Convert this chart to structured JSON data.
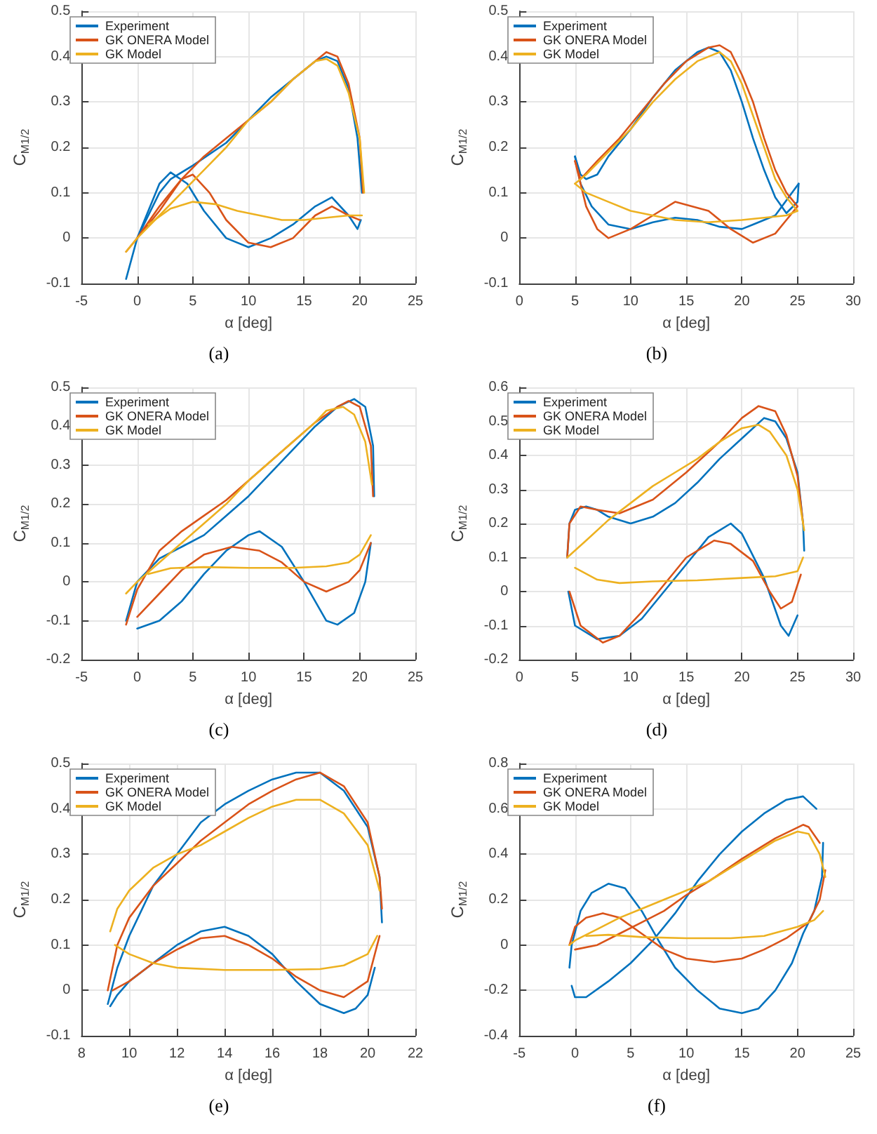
{
  "chart_data": [
    {
      "type": "line",
      "xlabel": "α [deg]",
      "ylabel": "C$_{M1/2}$",
      "annotations": [
        "(a)"
      ],
      "xlim": [
        -5,
        25
      ],
      "xticks": [
        -5,
        0,
        5,
        10,
        15,
        20,
        25
      ],
      "ylim": [
        -0.1,
        0.5
      ],
      "yticks": [
        -0.1,
        0,
        0.1,
        0.2,
        0.3,
        0.4,
        0.5
      ],
      "grid": true,
      "legend": "top left",
      "series": [
        {
          "name": "Experiment",
          "color": "#0072bd",
          "x": [
            -1,
            0,
            1,
            2,
            3,
            5,
            8,
            10,
            12,
            14,
            16,
            17,
            18,
            19,
            19.8,
            20.2
          ],
          "values": [
            -0.09,
            0,
            0.05,
            0.1,
            0.13,
            0.16,
            0.21,
            0.26,
            0.31,
            0.35,
            0.39,
            0.4,
            0.39,
            0.33,
            0.22,
            0.1
          ]
        },
        {
          "color": "#0072bd",
          "x": [
            0,
            1,
            2,
            3,
            4.5,
            6,
            8,
            10,
            12,
            14,
            16,
            17.5,
            19,
            19.8,
            20.1
          ],
          "values": [
            0,
            0.06,
            0.12,
            0.145,
            0.12,
            0.06,
            0,
            -0.02,
            0,
            0.03,
            0.07,
            0.09,
            0.05,
            0.02,
            0.04
          ]
        },
        {
          "name": "GK ONERA Model",
          "color": "#d95319",
          "x": [
            -1,
            0,
            2,
            4,
            6,
            8,
            10,
            12,
            14,
            16,
            17,
            18,
            19,
            20,
            20.3
          ],
          "values": [
            -0.03,
            0,
            0.07,
            0.13,
            0.18,
            0.22,
            0.26,
            0.3,
            0.35,
            0.39,
            0.41,
            0.4,
            0.34,
            0.22,
            0.1
          ]
        },
        {
          "color": "#d95319",
          "x": [
            0,
            2,
            4,
            5,
            6.5,
            8,
            10,
            12,
            14,
            16,
            17.5,
            19,
            20
          ],
          "values": [
            0,
            0.06,
            0.13,
            0.14,
            0.1,
            0.04,
            -0.01,
            -0.02,
            0,
            0.05,
            0.07,
            0.05,
            0.04
          ]
        },
        {
          "name": "GK Model",
          "color": "#edb120",
          "x": [
            -1,
            0,
            2,
            4,
            6,
            8,
            10,
            12,
            14,
            16,
            17,
            18,
            19,
            20,
            20.4
          ],
          "values": [
            -0.03,
            0,
            0.05,
            0.1,
            0.15,
            0.2,
            0.26,
            0.3,
            0.35,
            0.39,
            0.395,
            0.38,
            0.32,
            0.22,
            0.1
          ]
        },
        {
          "color": "#edb120",
          "x": [
            1,
            3,
            5,
            7,
            9,
            11,
            13,
            15,
            17,
            19,
            20.2
          ],
          "values": [
            0.03,
            0.065,
            0.08,
            0.075,
            0.06,
            0.05,
            0.04,
            0.04,
            0.045,
            0.05,
            0.05
          ]
        }
      ]
    },
    {
      "type": "line",
      "xlabel": "α [deg]",
      "ylabel": "C$_{M1/2}$",
      "annotations": [
        "(b)"
      ],
      "xlim": [
        0,
        30
      ],
      "xticks": [
        0,
        5,
        10,
        15,
        20,
        25,
        30
      ],
      "ylim": [
        -0.1,
        0.5
      ],
      "yticks": [
        -0.1,
        0,
        0.1,
        0.2,
        0.3,
        0.4,
        0.5
      ],
      "grid": true,
      "legend": "top left",
      "series": [
        {
          "name": "Experiment",
          "color": "#0072bd",
          "x": [
            5,
            5.5,
            6,
            7,
            8,
            10,
            12,
            14,
            16,
            17,
            18,
            19,
            20,
            21,
            22,
            23,
            24,
            25,
            25.1
          ],
          "values": [
            0.18,
            0.14,
            0.13,
            0.14,
            0.18,
            0.24,
            0.31,
            0.37,
            0.41,
            0.42,
            0.41,
            0.37,
            0.3,
            0.22,
            0.15,
            0.09,
            0.055,
            0.08,
            0.12
          ]
        },
        {
          "color": "#0072bd",
          "x": [
            5,
            5.5,
            6.5,
            8,
            10,
            12,
            14,
            16,
            18,
            20,
            21,
            23,
            24.5,
            25.1
          ],
          "values": [
            0.18,
            0.12,
            0.07,
            0.03,
            0.02,
            0.035,
            0.045,
            0.04,
            0.025,
            0.02,
            0.03,
            0.05,
            0.1,
            0.12
          ]
        },
        {
          "name": "GK ONERA Model",
          "color": "#d95319",
          "x": [
            5,
            5.5,
            7,
            9,
            11,
            13,
            15,
            17,
            18,
            19,
            20,
            21,
            22,
            23,
            24,
            25
          ],
          "values": [
            0.17,
            0.13,
            0.17,
            0.22,
            0.28,
            0.34,
            0.39,
            0.42,
            0.425,
            0.41,
            0.36,
            0.3,
            0.22,
            0.15,
            0.1,
            0.07
          ]
        },
        {
          "color": "#d95319",
          "x": [
            5,
            6,
            7,
            8,
            10,
            12,
            14,
            17,
            19,
            21,
            23,
            24,
            25
          ],
          "values": [
            0.17,
            0.07,
            0.02,
            0,
            0.02,
            0.05,
            0.08,
            0.06,
            0.02,
            -0.01,
            0.01,
            0.04,
            0.07
          ]
        },
        {
          "name": "GK Model",
          "color": "#edb120",
          "x": [
            5,
            6,
            8,
            10,
            12,
            14,
            16,
            18,
            19,
            20,
            21,
            22,
            23,
            24,
            25
          ],
          "values": [
            0.12,
            0.14,
            0.19,
            0.24,
            0.3,
            0.35,
            0.39,
            0.41,
            0.39,
            0.34,
            0.27,
            0.2,
            0.13,
            0.09,
            0.06
          ]
        },
        {
          "color": "#edb120",
          "x": [
            5,
            6,
            8,
            10,
            12,
            14,
            17,
            20,
            22,
            24,
            25
          ],
          "values": [
            0.12,
            0.1,
            0.08,
            0.06,
            0.05,
            0.04,
            0.035,
            0.04,
            0.045,
            0.05,
            0.06
          ]
        }
      ]
    },
    {
      "type": "line",
      "xlabel": "α [deg]",
      "ylabel": "C$_{M1/2}$",
      "annotations": [
        "(c)"
      ],
      "xlim": [
        -5,
        25
      ],
      "xticks": [
        -5,
        0,
        5,
        10,
        15,
        20,
        25
      ],
      "ylim": [
        -0.2,
        0.5
      ],
      "yticks": [
        -0.2,
        -0.1,
        0,
        0.1,
        0.2,
        0.3,
        0.4,
        0.5
      ],
      "grid": true,
      "legend": "top left",
      "series": [
        {
          "name": "Experiment",
          "color": "#0072bd",
          "x": [
            -1,
            0,
            2,
            4,
            6,
            8,
            10,
            12,
            14,
            16,
            18,
            19.5,
            20.5,
            21.2,
            21.3
          ],
          "values": [
            -0.1,
            0,
            0.06,
            0.09,
            0.12,
            0.17,
            0.22,
            0.28,
            0.34,
            0.4,
            0.45,
            0.47,
            0.45,
            0.35,
            0.22
          ]
        },
        {
          "color": "#0072bd",
          "x": [
            0,
            2,
            4,
            6,
            8,
            10,
            11,
            13,
            15,
            17,
            18,
            19.5,
            20.5,
            21
          ],
          "values": [
            -0.12,
            -0.1,
            -0.05,
            0.02,
            0.08,
            0.12,
            0.13,
            0.09,
            0,
            -0.1,
            -0.11,
            -0.08,
            0,
            0.1
          ]
        },
        {
          "name": "GK ONERA Model",
          "color": "#d95319",
          "x": [
            -1,
            0,
            2,
            4,
            6,
            8,
            10,
            12,
            14,
            16,
            18,
            19,
            20,
            21,
            21.2
          ],
          "values": [
            -0.11,
            -0.02,
            0.08,
            0.13,
            0.17,
            0.21,
            0.26,
            0.31,
            0.36,
            0.41,
            0.45,
            0.465,
            0.45,
            0.35,
            0.22
          ]
        },
        {
          "color": "#d95319",
          "x": [
            0,
            2,
            4,
            6,
            8.5,
            11,
            13,
            15,
            17,
            19,
            20,
            21
          ],
          "values": [
            -0.09,
            -0.03,
            0.03,
            0.07,
            0.09,
            0.08,
            0.05,
            0,
            -0.025,
            0,
            0.03,
            0.1
          ]
        },
        {
          "name": "GK Model",
          "color": "#edb120",
          "x": [
            -1,
            0,
            2,
            4,
            6,
            8,
            10,
            12,
            14,
            16,
            17,
            18.5,
            19.5,
            20.5,
            21.1
          ],
          "values": [
            -0.03,
            0,
            0.05,
            0.1,
            0.15,
            0.2,
            0.26,
            0.31,
            0.36,
            0.41,
            0.44,
            0.45,
            0.43,
            0.36,
            0.25
          ]
        },
        {
          "color": "#edb120",
          "x": [
            1,
            3,
            6,
            10,
            14,
            17,
            19,
            20,
            21
          ],
          "values": [
            0.02,
            0.035,
            0.038,
            0.036,
            0.036,
            0.04,
            0.05,
            0.07,
            0.12
          ]
        }
      ]
    },
    {
      "type": "line",
      "xlabel": "α [deg]",
      "ylabel": "C$_{M1/2}$",
      "annotations": [
        "(d)"
      ],
      "xlim": [
        0,
        30
      ],
      "xticks": [
        0,
        5,
        10,
        15,
        20,
        25,
        30
      ],
      "ylim": [
        -0.2,
        0.6
      ],
      "yticks": [
        -0.2,
        -0.1,
        0,
        0.1,
        0.2,
        0.3,
        0.4,
        0.5,
        0.6
      ],
      "grid": true,
      "legend": "top left",
      "series": [
        {
          "name": "Experiment",
          "color": "#0072bd",
          "x": [
            4.3,
            4.5,
            5,
            6,
            7,
            8,
            10,
            12,
            14,
            16,
            18,
            20,
            22,
            23,
            24,
            25,
            25.5,
            25.6
          ],
          "values": [
            0.1,
            0.2,
            0.24,
            0.25,
            0.24,
            0.22,
            0.2,
            0.22,
            0.26,
            0.32,
            0.39,
            0.45,
            0.51,
            0.5,
            0.45,
            0.35,
            0.2,
            0.12
          ]
        },
        {
          "color": "#0072bd",
          "x": [
            4.4,
            5,
            7,
            9,
            11,
            13,
            15,
            17,
            19,
            20,
            22,
            23.5,
            24.2,
            25
          ],
          "values": [
            0,
            -0.1,
            -0.14,
            -0.13,
            -0.08,
            0,
            0.08,
            0.16,
            0.2,
            0.17,
            0.04,
            -0.1,
            -0.13,
            -0.07
          ]
        },
        {
          "name": "GK ONERA Model",
          "color": "#d95319",
          "x": [
            4.3,
            4.5,
            5.5,
            7,
            9,
            12,
            15,
            18,
            20,
            21.5,
            23,
            24,
            25,
            25.5
          ],
          "values": [
            0.1,
            0.2,
            0.25,
            0.24,
            0.23,
            0.27,
            0.35,
            0.44,
            0.51,
            0.545,
            0.53,
            0.46,
            0.34,
            0.2
          ]
        },
        {
          "color": "#d95319",
          "x": [
            4.5,
            5.5,
            7.5,
            9,
            11,
            13,
            15,
            17.5,
            19,
            21,
            22.5,
            23.5,
            24.5,
            25.3
          ],
          "values": [
            0,
            -0.1,
            -0.15,
            -0.13,
            -0.06,
            0.02,
            0.1,
            0.15,
            0.14,
            0.09,
            0,
            -0.05,
            -0.03,
            0.05
          ]
        },
        {
          "name": "GK Model",
          "color": "#edb120",
          "x": [
            4.3,
            6,
            8,
            10,
            12,
            14,
            16,
            18,
            20,
            21.5,
            22.5,
            24,
            25,
            25.6
          ],
          "values": [
            0.1,
            0.15,
            0.21,
            0.26,
            0.31,
            0.35,
            0.39,
            0.44,
            0.48,
            0.49,
            0.47,
            0.4,
            0.3,
            0.18
          ]
        },
        {
          "color": "#edb120",
          "x": [
            5,
            7,
            9,
            12,
            16,
            20,
            23,
            25,
            25.5
          ],
          "values": [
            0.07,
            0.035,
            0.025,
            0.03,
            0.033,
            0.04,
            0.045,
            0.06,
            0.1
          ]
        }
      ]
    },
    {
      "type": "line",
      "xlabel": "α [deg]",
      "ylabel": "C$_{M1/2}$",
      "annotations": [
        "(e)"
      ],
      "xlim": [
        8,
        22
      ],
      "xticks": [
        8,
        10,
        12,
        14,
        16,
        18,
        20,
        22
      ],
      "ylim": [
        -0.1,
        0.5
      ],
      "yticks": [
        -0.1,
        0,
        0.1,
        0.2,
        0.3,
        0.4,
        0.5
      ],
      "grid": true,
      "legend": "top left",
      "series": [
        {
          "name": "Experiment",
          "color": "#0072bd",
          "x": [
            9.1,
            9.5,
            10,
            11,
            12,
            13,
            14,
            15,
            16,
            17,
            18,
            19,
            20,
            20.5,
            20.6
          ],
          "values": [
            -0.03,
            0.05,
            0.12,
            0.23,
            0.3,
            0.37,
            0.41,
            0.44,
            0.465,
            0.48,
            0.48,
            0.44,
            0.36,
            0.25,
            0.15
          ]
        },
        {
          "color": "#0072bd",
          "x": [
            9.2,
            9.5,
            10,
            11,
            12,
            13,
            14,
            15,
            16,
            17,
            18,
            19,
            19.5,
            20,
            20.3
          ],
          "values": [
            -0.035,
            -0.01,
            0.02,
            0.06,
            0.1,
            0.13,
            0.14,
            0.12,
            0.08,
            0.02,
            -0.03,
            -0.05,
            -0.04,
            -0.01,
            0.05
          ]
        },
        {
          "name": "GK ONERA Model",
          "color": "#d95319",
          "x": [
            9.1,
            9.5,
            10,
            11,
            12,
            13,
            14,
            15,
            16,
            17,
            18,
            19,
            20,
            20.5,
            20.6
          ],
          "values": [
            0,
            0.1,
            0.16,
            0.23,
            0.28,
            0.33,
            0.37,
            0.41,
            0.44,
            0.465,
            0.48,
            0.45,
            0.37,
            0.25,
            0.18
          ]
        },
        {
          "color": "#d95319",
          "x": [
            9.3,
            10,
            11,
            12,
            13,
            14,
            15,
            16,
            17,
            18,
            19,
            20,
            20.5
          ],
          "values": [
            0,
            0.02,
            0.06,
            0.09,
            0.115,
            0.12,
            0.1,
            0.07,
            0.03,
            0,
            -0.015,
            0.02,
            0.12
          ]
        },
        {
          "name": "GK Model",
          "color": "#edb120",
          "x": [
            9.2,
            9.5,
            10,
            11,
            12,
            13,
            14,
            15,
            16,
            17,
            18,
            19,
            20,
            20.5
          ],
          "values": [
            0.13,
            0.18,
            0.22,
            0.27,
            0.3,
            0.32,
            0.35,
            0.38,
            0.405,
            0.42,
            0.42,
            0.39,
            0.32,
            0.22
          ]
        },
        {
          "color": "#edb120",
          "x": [
            9.4,
            10,
            11,
            12,
            14,
            16,
            18,
            19,
            20,
            20.4
          ],
          "values": [
            0.1,
            0.08,
            0.06,
            0.05,
            0.045,
            0.045,
            0.047,
            0.055,
            0.08,
            0.12
          ]
        }
      ]
    },
    {
      "type": "line",
      "xlabel": "α [deg]",
      "ylabel": "C$_{M1/2}$",
      "annotations": [
        "(f)"
      ],
      "xlim": [
        -5,
        25
      ],
      "xticks": [
        -5,
        0,
        5,
        10,
        15,
        20,
        25
      ],
      "ylim": [
        -0.4,
        0.8
      ],
      "yticks": [
        -0.4,
        -0.2,
        0,
        0.2,
        0.4,
        0.6,
        0.8
      ],
      "grid": true,
      "legend": "top left",
      "series": [
        {
          "name": "Experiment",
          "color": "#0072bd",
          "x": [
            -0.5,
            -0.3,
            0.5,
            1.5,
            3,
            4.5,
            6,
            7.5,
            9,
            11,
            13,
            15,
            16.5,
            18,
            19.5,
            20.5,
            21.5,
            22.2,
            22.3
          ],
          "values": [
            -0.1,
            0,
            0.15,
            0.23,
            0.27,
            0.25,
            0.15,
            0.02,
            -0.1,
            -0.2,
            -0.28,
            -0.3,
            -0.28,
            -0.2,
            -0.08,
            0.05,
            0.15,
            0.3,
            0.45
          ]
        },
        {
          "color": "#0072bd",
          "x": [
            -0.3,
            0,
            1,
            3,
            5,
            7,
            9,
            11,
            13,
            15,
            17,
            19,
            20.5,
            21.7
          ],
          "values": [
            -0.18,
            -0.23,
            -0.23,
            -0.16,
            -0.08,
            0.02,
            0.14,
            0.28,
            0.4,
            0.5,
            0.58,
            0.64,
            0.655,
            0.6
          ]
        },
        {
          "name": "GK ONERA Model",
          "color": "#d95319",
          "x": [
            -0.5,
            0,
            1,
            2.5,
            4,
            6,
            8,
            10,
            12.5,
            15,
            17,
            19,
            21,
            22,
            22.5
          ],
          "values": [
            0,
            0.08,
            0.12,
            0.14,
            0.12,
            0.05,
            -0.02,
            -0.06,
            -0.075,
            -0.06,
            -0.02,
            0.03,
            0.1,
            0.2,
            0.33
          ]
        },
        {
          "color": "#d95319",
          "x": [
            0,
            2,
            4,
            6,
            8,
            10,
            12,
            15,
            18,
            20.5,
            21,
            22
          ],
          "values": [
            -0.02,
            0,
            0.05,
            0.1,
            0.15,
            0.22,
            0.28,
            0.38,
            0.47,
            0.53,
            0.52,
            0.45
          ]
        },
        {
          "name": "GK Model",
          "color": "#edb120",
          "x": [
            -0.5,
            0,
            2,
            4,
            6,
            8,
            10,
            12,
            14,
            16,
            18,
            20,
            21,
            22,
            22.5
          ],
          "values": [
            0,
            0.02,
            0.07,
            0.12,
            0.16,
            0.2,
            0.24,
            0.28,
            0.34,
            0.4,
            0.46,
            0.5,
            0.49,
            0.4,
            0.3
          ]
        },
        {
          "color": "#edb120",
          "x": [
            1,
            3,
            6,
            10,
            14,
            17,
            20,
            21.5,
            22.3
          ],
          "values": [
            0.04,
            0.045,
            0.035,
            0.03,
            0.03,
            0.04,
            0.08,
            0.11,
            0.15
          ]
        }
      ]
    }
  ]
}
